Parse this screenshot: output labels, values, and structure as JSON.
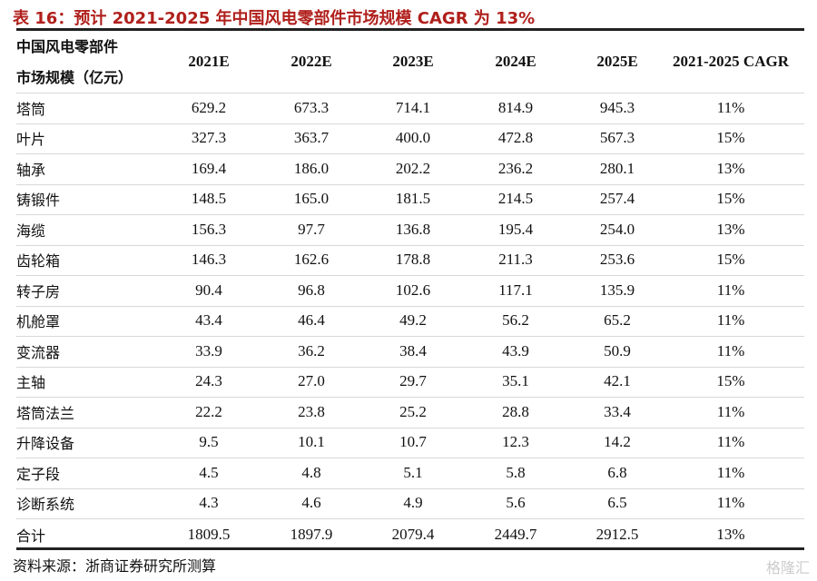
{
  "title": "表 16：预计 2021-2025 年中国风电零部件市场规模 CAGR 为 13%",
  "header": {
    "label_line1": "中国风电零部件",
    "label_line2": "市场规模（亿元）",
    "columns": [
      "2021E",
      "2022E",
      "2023E",
      "2024E",
      "2025E",
      "2021-2025 CAGR"
    ]
  },
  "rows": [
    [
      "塔筒",
      "629.2",
      "673.3",
      "714.1",
      "814.9",
      "945.3",
      "11%"
    ],
    [
      "叶片",
      "327.3",
      "363.7",
      "400.0",
      "472.8",
      "567.3",
      "15%"
    ],
    [
      "轴承",
      "169.4",
      "186.0",
      "202.2",
      "236.2",
      "280.1",
      "13%"
    ],
    [
      "铸锻件",
      "148.5",
      "165.0",
      "181.5",
      "214.5",
      "257.4",
      "15%"
    ],
    [
      "海缆",
      "156.3",
      "97.7",
      "136.8",
      "195.4",
      "254.0",
      "13%"
    ],
    [
      "齿轮箱",
      "146.3",
      "162.6",
      "178.8",
      "211.3",
      "253.6",
      "15%"
    ],
    [
      "转子房",
      "90.4",
      "96.8",
      "102.6",
      "117.1",
      "135.9",
      "11%"
    ],
    [
      "机舱罩",
      "43.4",
      "46.4",
      "49.2",
      "56.2",
      "65.2",
      "11%"
    ],
    [
      "变流器",
      "33.9",
      "36.2",
      "38.4",
      "43.9",
      "50.9",
      "11%"
    ],
    [
      "主轴",
      "24.3",
      "27.0",
      "29.7",
      "35.1",
      "42.1",
      "15%"
    ],
    [
      "塔筒法兰",
      "22.2",
      "23.8",
      "25.2",
      "28.8",
      "33.4",
      "11%"
    ],
    [
      "升降设备",
      "9.5",
      "10.1",
      "10.7",
      "12.3",
      "14.2",
      "11%"
    ],
    [
      "定子段",
      "4.5",
      "4.8",
      "5.1",
      "5.8",
      "6.8",
      "11%"
    ],
    [
      "诊断系统",
      "4.3",
      "4.6",
      "4.9",
      "5.6",
      "6.5",
      "11%"
    ],
    [
      "合计",
      "1809.5",
      "1897.9",
      "2079.4",
      "2449.7",
      "2912.5",
      "13%"
    ]
  ],
  "footer": "资料来源：浙商证券研究所测算",
  "watermark": "格隆汇",
  "colors": {
    "title": "#b0201c"
  }
}
